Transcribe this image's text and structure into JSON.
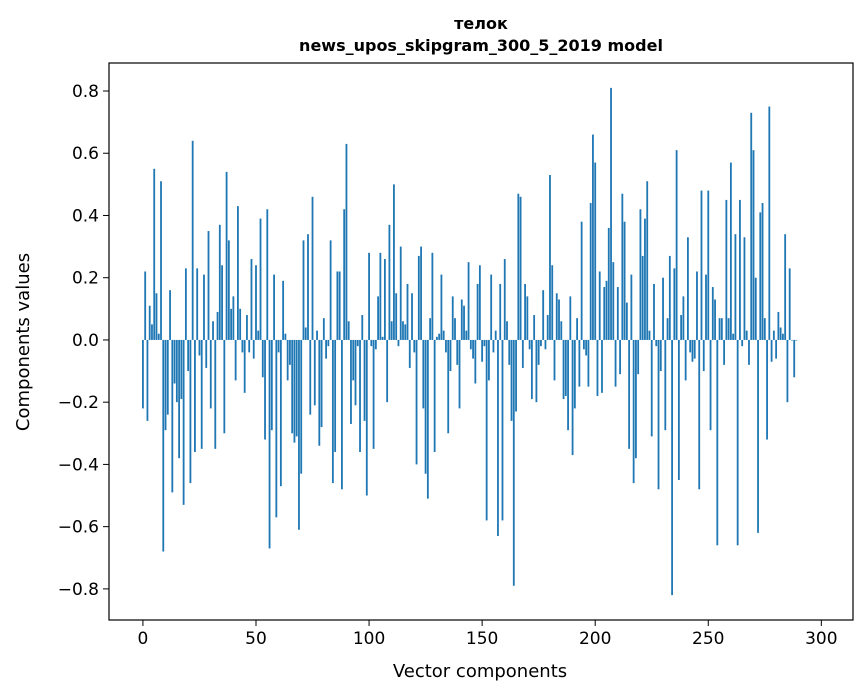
{
  "chart_data": {
    "type": "bar",
    "title_line1": "телок",
    "title_line2": "news_upos_skipgram_300_5_2019 model",
    "xlabel": "Vector components",
    "ylabel": "Components values",
    "xlim": [
      -15,
      314
    ],
    "ylim": [
      -0.9,
      0.89
    ],
    "xticks": [
      0,
      50,
      100,
      150,
      200,
      250,
      300
    ],
    "xtick_labels": [
      "0",
      "50",
      "100",
      "150",
      "200",
      "250",
      "300"
    ],
    "yticks": [
      -0.8,
      -0.6,
      -0.4,
      -0.2,
      0.0,
      0.2,
      0.4,
      0.6,
      0.8
    ],
    "ytick_labels": [
      "−0.8",
      "−0.6",
      "−0.4",
      "−0.2",
      "0.0",
      "0.2",
      "0.4",
      "0.6",
      "0.8"
    ],
    "bar_color": "#1f77b4",
    "grid": false,
    "values": [
      -0.22,
      0.22,
      -0.26,
      0.11,
      0.05,
      0.55,
      0.15,
      0.02,
      0.51,
      -0.68,
      -0.29,
      -0.24,
      0.16,
      -0.49,
      -0.14,
      -0.2,
      -0.38,
      -0.19,
      -0.53,
      0.23,
      -0.1,
      -0.46,
      0.64,
      -0.36,
      0.23,
      -0.05,
      -0.35,
      0.21,
      -0.09,
      0.35,
      -0.22,
      0.06,
      -0.35,
      0.09,
      0.37,
      0.24,
      -0.3,
      0.54,
      0.32,
      0.1,
      0.14,
      -0.13,
      0.43,
      0.1,
      -0.04,
      -0.17,
      0.08,
      -0.04,
      0.26,
      -0.06,
      0.24,
      0.03,
      0.39,
      -0.12,
      -0.32,
      0.42,
      -0.67,
      -0.29,
      0.21,
      -0.57,
      -0.04,
      -0.47,
      0.19,
      0.02,
      -0.13,
      -0.08,
      -0.3,
      -0.33,
      -0.31,
      -0.61,
      -0.43,
      0.32,
      0.04,
      0.34,
      -0.24,
      0.46,
      -0.21,
      0.03,
      -0.34,
      -0.28,
      0.07,
      -0.06,
      -0.02,
      0.32,
      -0.46,
      -0.36,
      0.22,
      0.22,
      -0.48,
      0.42,
      0.63,
      0.06,
      -0.27,
      -0.13,
      -0.21,
      -0.02,
      -0.36,
      0.08,
      -0.26,
      -0.5,
      0.28,
      -0.02,
      -0.35,
      -0.03,
      0.14,
      0.28,
      0.01,
      0.26,
      -0.2,
      0.37,
      0.06,
      0.5,
      0.15,
      -0.02,
      0.3,
      0.06,
      0.05,
      0.18,
      -0.09,
      0.15,
      -0.04,
      -0.4,
      0.27,
      0.3,
      -0.22,
      -0.43,
      -0.51,
      0.07,
      0.28,
      -0.36,
      0.01,
      0.02,
      0.21,
      0.03,
      -0.04,
      -0.3,
      -0.1,
      0.14,
      0.07,
      -0.08,
      -0.22,
      0.13,
      0.11,
      0.03,
      0.25,
      -0.03,
      -0.06,
      -0.14,
      0.18,
      0.24,
      -0.07,
      -0.02,
      -0.58,
      -0.13,
      0.21,
      -0.04,
      0.03,
      -0.63,
      0.18,
      -0.58,
      0.26,
      0.06,
      -0.08,
      -0.26,
      -0.79,
      -0.23,
      0.47,
      0.46,
      -0.09,
      0.18,
      0.14,
      -0.03,
      -0.19,
      0.08,
      -0.2,
      -0.08,
      -0.02,
      0.16,
      -0.03,
      0.08,
      0.53,
      0.24,
      -0.13,
      0.15,
      0.13,
      0.06,
      -0.19,
      -0.18,
      -0.29,
      0.14,
      -0.37,
      -0.22,
      0.07,
      -0.15,
      0.38,
      -0.03,
      -0.05,
      -0.15,
      0.44,
      0.66,
      0.57,
      -0.18,
      0.22,
      -0.17,
      0.17,
      0.19,
      0.36,
      0.81,
      0.25,
      -0.15,
      0.17,
      -0.11,
      0.47,
      0.38,
      0.12,
      -0.35,
      0.21,
      -0.46,
      -0.38,
      -0.11,
      0.42,
      0.27,
      0.39,
      0.51,
      0.03,
      -0.31,
      0.18,
      -0.02,
      -0.48,
      -0.1,
      0.2,
      -0.29,
      0.07,
      0.27,
      -0.82,
      0.23,
      0.61,
      -0.45,
      0.08,
      0.14,
      -0.13,
      0.33,
      -0.04,
      -0.07,
      -0.06,
      0.22,
      -0.48,
      0.48,
      -0.1,
      0.21,
      0.48,
      -0.29,
      0.17,
      0.13,
      -0.66,
      0.07,
      0.07,
      -0.08,
      0.45,
      0.07,
      0.57,
      0.02,
      0.34,
      -0.66,
      0.45,
      -0.02,
      0.33,
      0.03,
      -0.08,
      0.73,
      0.61,
      0.2,
      -0.62,
      0.41,
      0.44,
      0.07,
      -0.32,
      0.75,
      -0.07,
      0.03,
      -0.06,
      0.09,
      0.04,
      0.02,
      0.34,
      -0.2,
      0.23,
      0.0,
      -0.12,
      0.0
    ]
  }
}
